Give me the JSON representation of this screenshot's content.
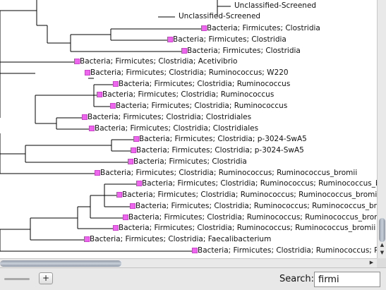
{
  "tree": {
    "leaves": [
      {
        "label": "Unclassified-Screened",
        "marker": false
      },
      {
        "label": "Unclassified-Screened",
        "marker": false
      },
      {
        "label": "Bacteria; Firmicutes; Clostridia",
        "marker": true
      },
      {
        "label": "Bacteria; Firmicutes; Clostridia",
        "marker": true
      },
      {
        "label": "Bacteria; Firmicutes; Clostridia",
        "marker": true
      },
      {
        "label": "Bacteria; Firmicutes; Clostridia; Acetivibrio",
        "marker": true
      },
      {
        "label": "Bacteria; Firmicutes; Clostridia; Ruminococcus; W220",
        "marker": true
      },
      {
        "label": "Bacteria; Firmicutes; Clostridia; Ruminococcus",
        "marker": true
      },
      {
        "label": "Bacteria; Firmicutes; Clostridia; Ruminococcus",
        "marker": true
      },
      {
        "label": "Bacteria; Firmicutes; Clostridia; Ruminococcus",
        "marker": true
      },
      {
        "label": "Bacteria; Firmicutes; Clostridia; Clostridiales",
        "marker": true
      },
      {
        "label": "Bacteria; Firmicutes; Clostridia; Clostridiales",
        "marker": true
      },
      {
        "label": "Bacteria; Firmicutes; Clostridia; p-3024-SwA5",
        "marker": true
      },
      {
        "label": "Bacteria; Firmicutes; Clostridia; p-3024-SwA5",
        "marker": true
      },
      {
        "label": "Bacteria; Firmicutes; Clostridia",
        "marker": true
      },
      {
        "label": "Bacteria; Firmicutes; Clostridia; Ruminococcus; Ruminococcus_bromii",
        "marker": true
      },
      {
        "label": "Bacteria; Firmicutes; Clostridia; Ruminococcus; Ruminococcus_bromi",
        "marker": true
      },
      {
        "label": "Bacteria; Firmicutes; Clostridia; Ruminococcus; Ruminococcus_bromii",
        "marker": true
      },
      {
        "label": "Bacteria; Firmicutes; Clostridia; Ruminococcus; Ruminococcus_bromii",
        "marker": true
      },
      {
        "label": "Bacteria; Firmicutes; Clostridia; Ruminococcus; Ruminococcus_bromii",
        "marker": true
      },
      {
        "label": "Bacteria; Firmicutes; Clostridia; Ruminococcus; Ruminococcus_bromii",
        "marker": true
      },
      {
        "label": "Bacteria; Firmicutes; Clostridia; Faecalibacterium",
        "marker": true
      },
      {
        "label": "Bacteria; Firmicutes; Clostridia; Ruminococcus; Rumi",
        "marker": true
      }
    ],
    "marker_color": "#ee66ee",
    "line_color": "#000000"
  },
  "scrollbars": {
    "up_icon": "arrow-up-icon",
    "down_icon": "arrow-down-icon",
    "right_icon": "arrow-right-icon"
  },
  "bottombar": {
    "zoom_plus_label": "+",
    "search_label": "Search:",
    "search_value": "firmi"
  }
}
